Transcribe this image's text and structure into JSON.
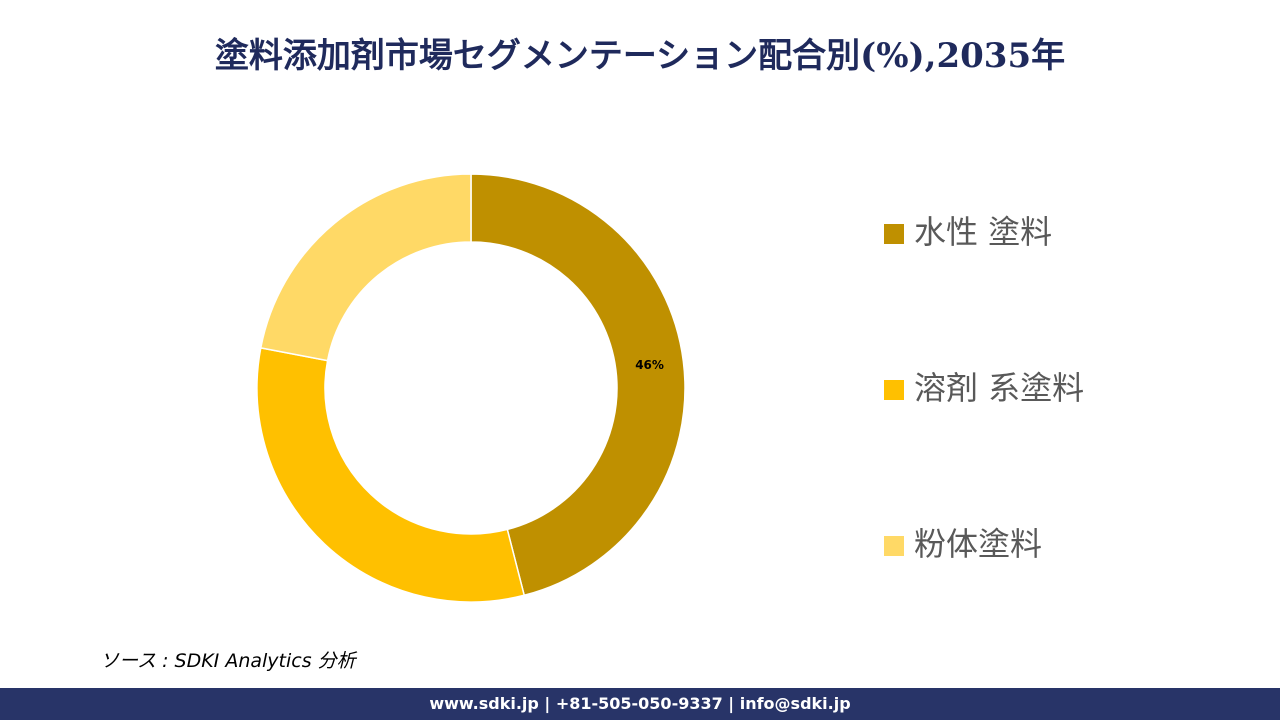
{
  "chart_data": {
    "type": "donut",
    "title": "塗料添加剤市場セグメンテーション配合別(%),2035年",
    "categories": [
      "水性 塗料",
      "溶剤 系塗料",
      "粉体塗料"
    ],
    "values": [
      46,
      32,
      22
    ],
    "value_labels": [
      "46%",
      null,
      null
    ],
    "colors": [
      "#bf9000",
      "#ffc000",
      "#ffd966"
    ],
    "legend": "right"
  },
  "source": "ソース : SDKI Analytics 分析",
  "footer": "www.sdki.jp | +81-505-050-9337 | info@sdki.jp"
}
